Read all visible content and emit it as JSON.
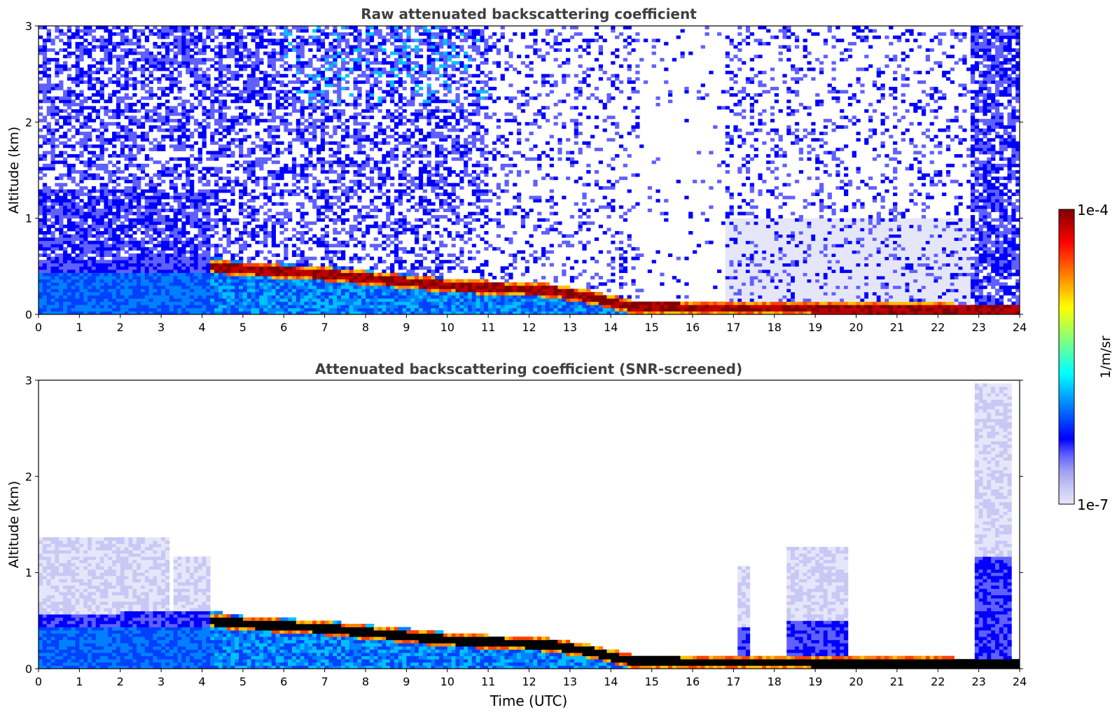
{
  "chart_data": [
    {
      "type": "heatmap",
      "title": "Raw attenuated backscattering coefficient",
      "ylabel": "Altitude (km)",
      "xlabel": "",
      "xlim": [
        0,
        24
      ],
      "ylim": [
        0,
        3
      ],
      "x_ticks": [
        "0",
        "1",
        "2",
        "3",
        "4",
        "5",
        "6",
        "7",
        "8",
        "9",
        "10",
        "11",
        "12",
        "13",
        "14",
        "15",
        "16",
        "17",
        "18",
        "19",
        "20",
        "21",
        "22",
        "23",
        "24"
      ],
      "y_ticks": [
        "0",
        "1",
        "2",
        "3"
      ],
      "layer_top_km": [
        [
          0,
          0.55
        ],
        [
          3,
          0.6
        ],
        [
          4.2,
          0.6
        ],
        [
          5,
          0.55
        ],
        [
          7,
          0.5
        ],
        [
          10,
          0.38
        ],
        [
          12.5,
          0.3
        ],
        [
          13.5,
          0.25
        ],
        [
          14.5,
          0.15
        ],
        [
          16,
          0.12
        ],
        [
          17,
          0.12
        ],
        [
          19.5,
          0.1
        ],
        [
          21,
          0.09
        ],
        [
          23.8,
          0.08
        ]
      ],
      "cloud_peak_km": [
        [
          4.2,
          0.5
        ],
        [
          5,
          0.47
        ],
        [
          7,
          0.42
        ],
        [
          10,
          0.3
        ],
        [
          12.5,
          0.25
        ],
        [
          13.5,
          0.18
        ],
        [
          14.5,
          0.08
        ],
        [
          16,
          0.07
        ],
        [
          19.5,
          0.06
        ],
        [
          23.8,
          0.04
        ]
      ]
    },
    {
      "type": "heatmap",
      "title": "Attenuated backscattering coefficient (SNR-screened)",
      "ylabel": "Altitude (km)",
      "xlabel": "Time (UTC)",
      "xlim": [
        0,
        24
      ],
      "ylim": [
        0,
        3
      ],
      "x_ticks": [
        "0",
        "1",
        "2",
        "3",
        "4",
        "5",
        "6",
        "7",
        "8",
        "9",
        "10",
        "11",
        "12",
        "13",
        "14",
        "15",
        "16",
        "17",
        "18",
        "19",
        "20",
        "21",
        "22",
        "23",
        "24"
      ],
      "y_ticks": [
        "0",
        "1",
        "2",
        "3"
      ],
      "screened_regions_km": [
        [
          0,
          3.2,
          0,
          1.35
        ],
        [
          3.3,
          4.2,
          0,
          1.15
        ],
        [
          17.1,
          17.4,
          0,
          1.05
        ],
        [
          18.3,
          19.8,
          0,
          1.25
        ],
        [
          22.9,
          23.8,
          0,
          2.95
        ]
      ]
    }
  ],
  "colorbar": {
    "max_label": "1e-4",
    "min_label": "1e-7",
    "unit_label": "1/m/sr",
    "colors": [
      "#e6e6fa",
      "#c8c8f5",
      "#a0a0f0",
      "#6060ff",
      "#0000ff",
      "#0040ff",
      "#0080ff",
      "#00c0ff",
      "#00ffff",
      "#40ffc0",
      "#80ff80",
      "#c0ff40",
      "#ffff00",
      "#ffc000",
      "#ff8000",
      "#ff4000",
      "#ff0000",
      "#c00000",
      "#800000"
    ]
  }
}
